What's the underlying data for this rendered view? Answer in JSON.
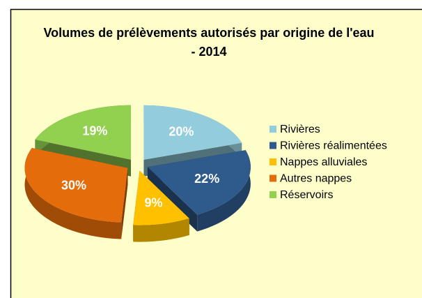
{
  "chart_data": {
    "type": "pie",
    "title": "Volumes de prélèvements autorisés par origine de l'eau - 2014",
    "categories": [
      "Rivières",
      "Rivières réalimentées",
      "Nappes alluviales",
      "Autres nappes",
      "Réservoirs"
    ],
    "values": [
      20,
      22,
      9,
      30,
      19
    ],
    "value_labels": [
      "20%",
      "22%",
      "9%",
      "30%",
      "19%"
    ],
    "colors": [
      "#93cddd",
      "#2f5a8c",
      "#ffc000",
      "#e46c0a",
      "#92d050"
    ],
    "legend": "right"
  }
}
